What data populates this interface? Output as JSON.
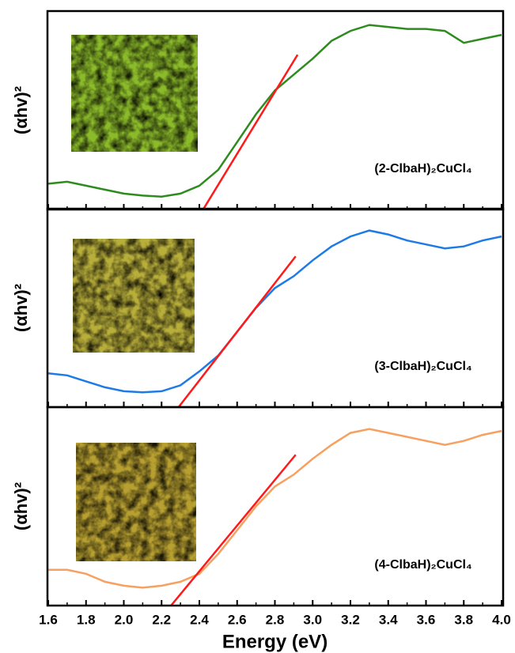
{
  "chart_data": [
    {
      "type": "line",
      "y_label": "(αhv)²",
      "annotation": "(2-ClbaH)₂CuCl₄",
      "xlim": [
        1.6,
        4.0
      ],
      "ylim": [
        0,
        1
      ],
      "x": [
        1.6,
        1.7,
        1.8,
        1.9,
        2.0,
        2.1,
        2.2,
        2.3,
        2.4,
        2.5,
        2.6,
        2.7,
        2.8,
        2.9,
        3.0,
        3.1,
        3.2,
        3.3,
        3.4,
        3.5,
        3.6,
        3.7,
        3.8,
        3.9,
        4.0
      ],
      "series": [
        {
          "color": "#2e8b1e",
          "values": [
            0.13,
            0.14,
            0.12,
            0.1,
            0.08,
            0.07,
            0.065,
            0.08,
            0.12,
            0.2,
            0.34,
            0.48,
            0.6,
            0.68,
            0.76,
            0.85,
            0.9,
            0.93,
            0.92,
            0.91,
            0.91,
            0.9,
            0.84,
            0.86,
            0.88
          ]
        }
      ],
      "fit": {
        "color": "#ff1a1a",
        "x": [
          2.42,
          2.92
        ],
        "values": [
          0,
          0.78
        ]
      }
    },
    {
      "type": "line",
      "y_label": "(αhv)²",
      "annotation": "(3-ClbaH)₂CuCl₄",
      "xlim": [
        1.6,
        4.0
      ],
      "ylim": [
        0,
        1
      ],
      "x": [
        1.6,
        1.7,
        1.8,
        1.9,
        2.0,
        2.1,
        2.2,
        2.3,
        2.4,
        2.5,
        2.6,
        2.7,
        2.8,
        2.9,
        3.0,
        3.1,
        3.2,
        3.3,
        3.4,
        3.5,
        3.6,
        3.7,
        3.8,
        3.9,
        4.0
      ],
      "series": [
        {
          "color": "#1e7be6",
          "values": [
            0.17,
            0.16,
            0.13,
            0.1,
            0.08,
            0.075,
            0.08,
            0.11,
            0.18,
            0.26,
            0.38,
            0.5,
            0.6,
            0.66,
            0.74,
            0.81,
            0.86,
            0.89,
            0.87,
            0.84,
            0.82,
            0.8,
            0.81,
            0.84,
            0.86
          ]
        }
      ],
      "fit": {
        "color": "#ff1a1a",
        "x": [
          2.29,
          2.91
        ],
        "values": [
          0,
          0.76
        ]
      }
    },
    {
      "type": "line",
      "y_label": "(αhv)²",
      "annotation": "(4-ClbaH)₂CuCl₄",
      "x_label": "Energy (eV)",
      "xlim": [
        1.6,
        4.0
      ],
      "ylim": [
        0,
        1
      ],
      "xticks": [
        {
          "value": 1.6,
          "label": "1.6"
        },
        {
          "value": 1.8,
          "label": "1.8"
        },
        {
          "value": 2.0,
          "label": "2.0"
        },
        {
          "value": 2.2,
          "label": "2.2"
        },
        {
          "value": 2.4,
          "label": "2.4"
        },
        {
          "value": 2.6,
          "label": "2.6"
        },
        {
          "value": 2.8,
          "label": "2.8"
        },
        {
          "value": 3.0,
          "label": "3.0"
        },
        {
          "value": 3.2,
          "label": "3.2"
        },
        {
          "value": 3.4,
          "label": "3.4"
        },
        {
          "value": 3.6,
          "label": "3.6"
        },
        {
          "value": 3.8,
          "label": "3.8"
        },
        {
          "value": 4.0,
          "label": "4.0"
        }
      ],
      "x": [
        1.6,
        1.7,
        1.8,
        1.9,
        2.0,
        2.1,
        2.2,
        2.3,
        2.4,
        2.5,
        2.6,
        2.7,
        2.8,
        2.9,
        3.0,
        3.1,
        3.2,
        3.3,
        3.4,
        3.5,
        3.6,
        3.7,
        3.8,
        3.9,
        4.0
      ],
      "series": [
        {
          "color": "#f7a060",
          "values": [
            0.18,
            0.18,
            0.16,
            0.12,
            0.1,
            0.09,
            0.1,
            0.12,
            0.16,
            0.26,
            0.38,
            0.5,
            0.6,
            0.66,
            0.74,
            0.81,
            0.87,
            0.89,
            0.87,
            0.85,
            0.83,
            0.81,
            0.83,
            0.86,
            0.88
          ]
        }
      ],
      "fit": {
        "color": "#ff1a1a",
        "x": [
          2.25,
          2.91
        ],
        "values": [
          0,
          0.76
        ]
      }
    }
  ]
}
